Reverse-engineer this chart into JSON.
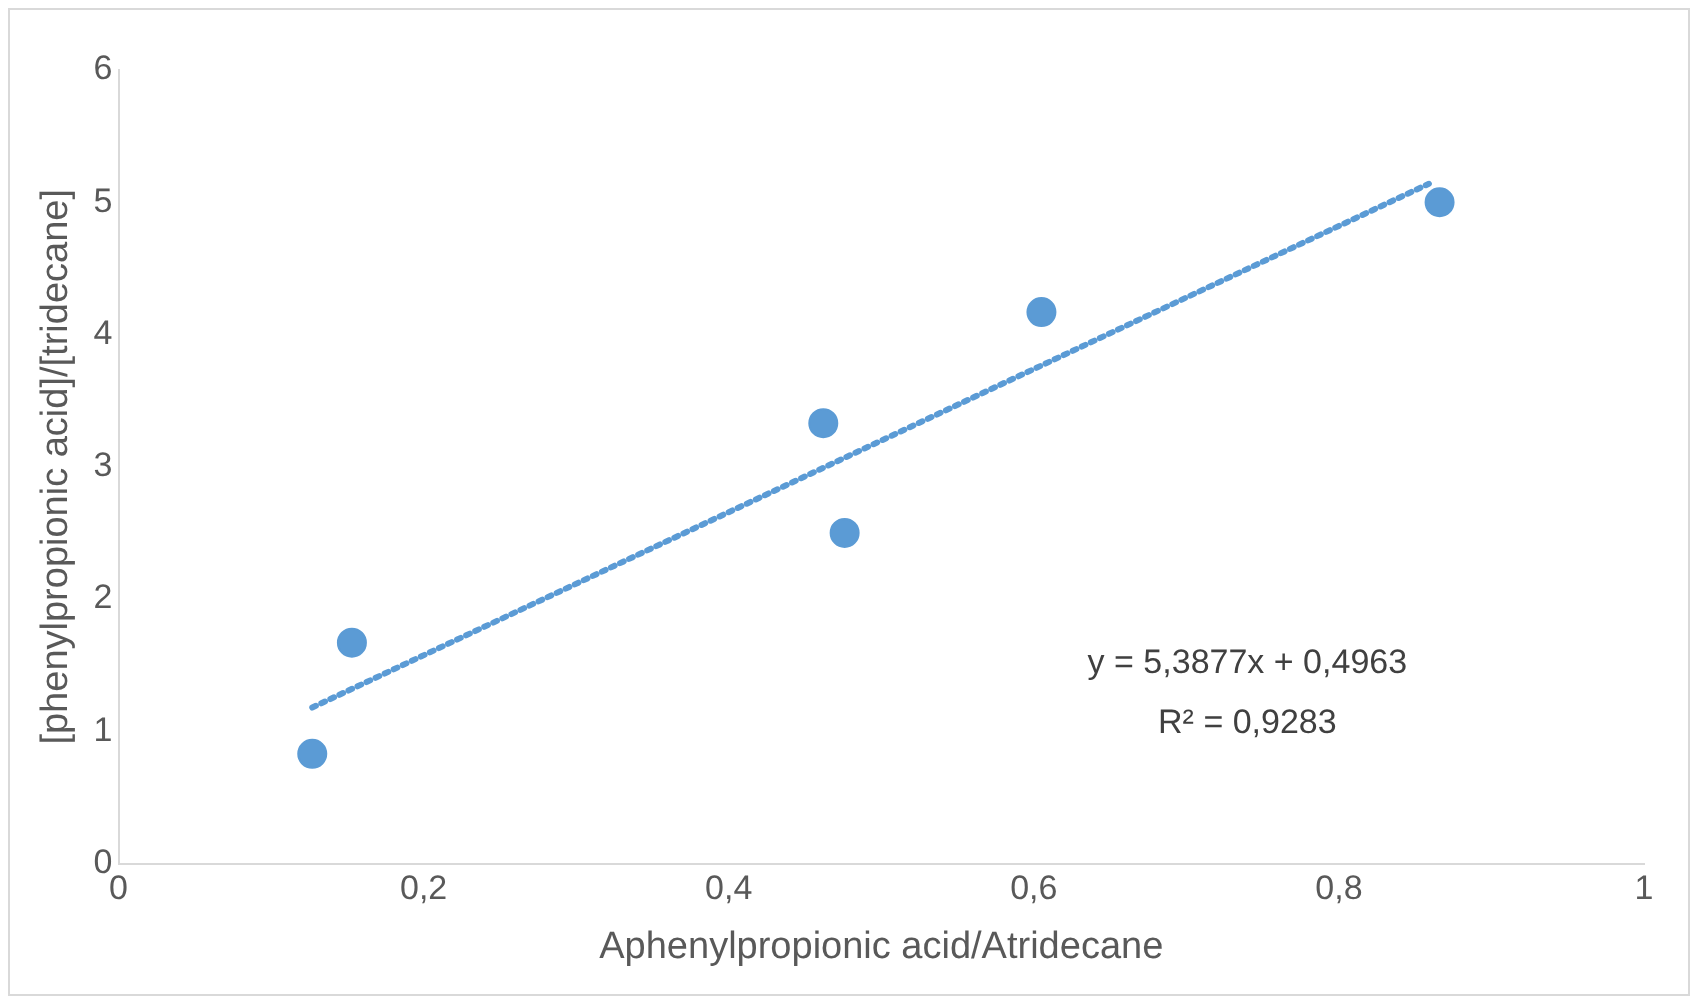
{
  "chart_data": {
    "type": "scatter",
    "xlabel": "Aphenylpropionic acid/Atridecane",
    "ylabel": "[phenylpropionic acid]/[tridecane]",
    "series": [
      {
        "color": "#5b9bd5",
        "x": [
          0.127,
          0.153,
          0.462,
          0.476,
          0.605,
          0.866
        ],
        "values": [
          0.83,
          1.67,
          3.33,
          2.5,
          4.17,
          5.0
        ],
        "marker": "circle"
      },
      {
        "type": "line",
        "color": "#5b9bd5",
        "x": [
          0.127,
          0.859
        ],
        "values": [
          1.18,
          5.14
        ],
        "line_style": "dotted",
        "marker": "none"
      }
    ],
    "xlim": [
      0,
      1
    ],
    "xticks": [
      {
        "value": 0,
        "label": "0"
      },
      {
        "value": 0.2,
        "label": "0,2"
      },
      {
        "value": 0.4,
        "label": "0,4"
      },
      {
        "value": 0.6,
        "label": "0,6"
      },
      {
        "value": 0.8,
        "label": "0,8"
      },
      {
        "value": 1,
        "label": "1"
      }
    ],
    "ylim": [
      0,
      6
    ],
    "yticks": [
      0,
      1,
      2,
      3,
      4,
      5,
      6
    ],
    "grid": false,
    "legend": false,
    "annotations": [
      "y = 5,3877x + 0,4963",
      "R² = 0,9283"
    ]
  }
}
